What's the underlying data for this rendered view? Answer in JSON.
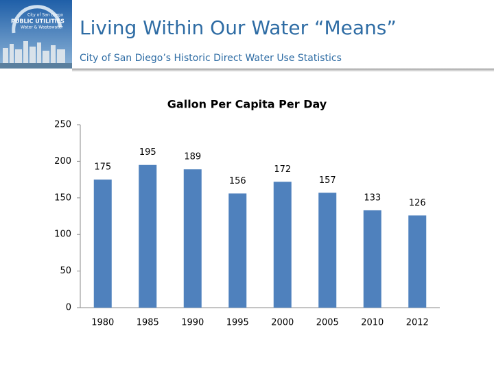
{
  "header": {
    "logo_lines": [
      "City of San Diego",
      "PUBLIC UTILITIES",
      "Water & Wastewater"
    ],
    "title": "Living Within Our Water “Means”",
    "subtitle": "City of San Diego’s Historic Direct Water Use Statistics"
  },
  "chart_data": {
    "type": "bar",
    "title": "Gallon Per Capita Per Day",
    "categories": [
      "1980",
      "1985",
      "1990",
      "1995",
      "2000",
      "2005",
      "2010",
      "2012"
    ],
    "values": [
      175,
      195,
      189,
      156,
      172,
      157,
      133,
      126
    ],
    "color": "#4f81bd",
    "ylim": [
      0,
      250
    ],
    "yticks": [
      0,
      50,
      100,
      150,
      200,
      250
    ],
    "grid": false
  }
}
